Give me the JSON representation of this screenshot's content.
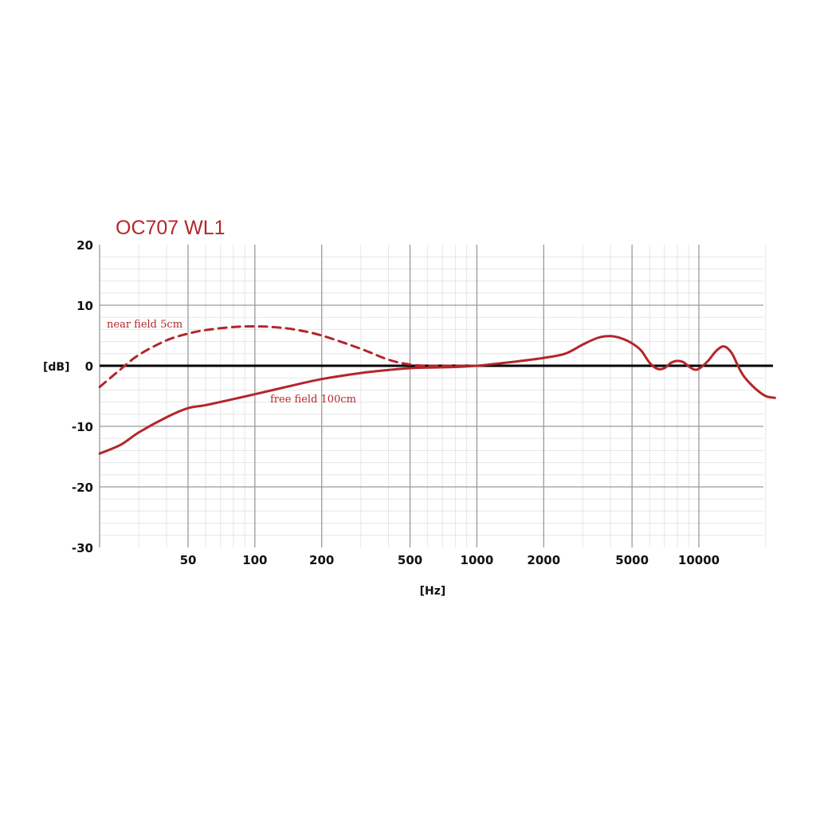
{
  "chart_data": {
    "type": "line",
    "title": "OC707 WL1",
    "xlabel": "[Hz]",
    "ylabel": "[dB]",
    "x_scale": "log",
    "xlim": [
      20,
      22000
    ],
    "ylim": [
      -30,
      20
    ],
    "x_ticks": [
      50,
      100,
      200,
      500,
      1000,
      2000,
      5000,
      10000
    ],
    "y_ticks": [
      20,
      10,
      0,
      -10,
      -20,
      -30
    ],
    "grid": true,
    "series_color": "#b3262b",
    "series": [
      {
        "name": "free field 100cm",
        "style": "solid",
        "x": [
          20,
          25,
          30,
          40,
          50,
          60,
          80,
          100,
          150,
          200,
          300,
          400,
          500,
          600,
          800,
          1000,
          1200,
          1500,
          2000,
          2500,
          3000,
          3500,
          4000,
          4500,
          5000,
          5500,
          6000,
          6500,
          7000,
          7500,
          8000,
          8500,
          9000,
          9500,
          10000,
          11000,
          12000,
          13000,
          14000,
          15000,
          16000,
          18000,
          20000,
          22000
        ],
        "y": [
          -14.5,
          -13.0,
          -11.0,
          -8.5,
          -7.0,
          -6.5,
          -5.5,
          -4.7,
          -3.2,
          -2.2,
          -1.2,
          -0.7,
          -0.4,
          -0.3,
          -0.2,
          0.0,
          0.3,
          0.7,
          1.3,
          2.0,
          3.5,
          4.6,
          4.9,
          4.5,
          3.7,
          2.5,
          0.5,
          -0.5,
          -0.4,
          0.5,
          0.8,
          0.6,
          -0.1,
          -0.6,
          -0.5,
          0.8,
          2.5,
          3.2,
          2.2,
          0.0,
          -1.8,
          -3.8,
          -5.0,
          -5.3
        ]
      },
      {
        "name": "near field 5cm",
        "style": "dashed",
        "x": [
          20,
          25,
          30,
          40,
          50,
          60,
          80,
          100,
          120,
          150,
          200,
          300,
          400,
          500,
          600,
          800,
          1000
        ],
        "y": [
          -3.5,
          -0.5,
          1.8,
          4.2,
          5.3,
          5.9,
          6.4,
          6.5,
          6.4,
          6.0,
          5.0,
          2.8,
          1.0,
          0.2,
          0.0,
          0.0,
          0.0
        ]
      }
    ],
    "annotations": [
      "near field 5cm",
      "free field 100cm"
    ]
  }
}
